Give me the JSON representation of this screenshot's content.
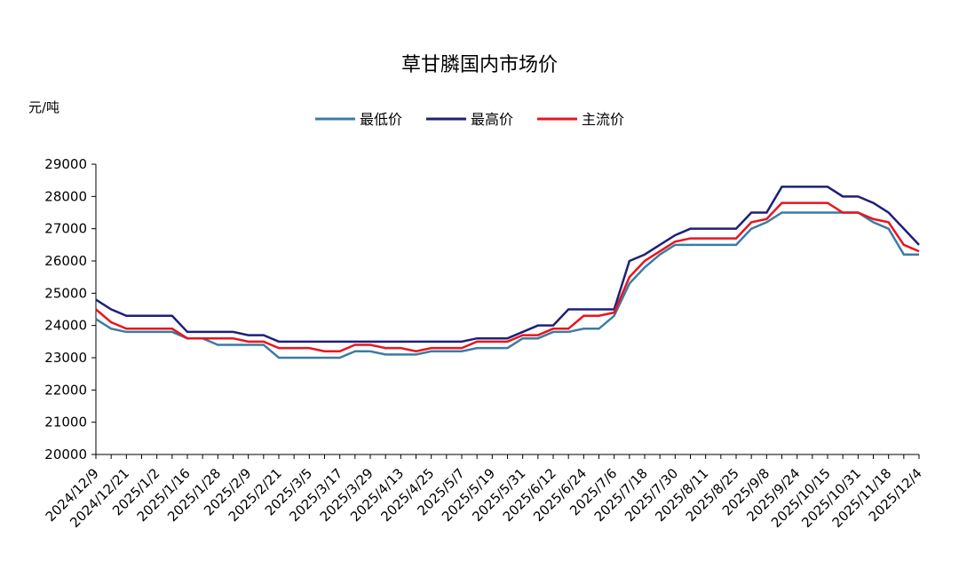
{
  "chart_data": {
    "type": "line",
    "title": "草甘膦国内市场价",
    "y_label": "元/吨",
    "categories": [
      "2024/12/9",
      null,
      "2024/12/21",
      null,
      "2025/1/2",
      null,
      "2025/1/16",
      null,
      "2025/1/28",
      null,
      "2025/2/9",
      null,
      "2025/2/21",
      null,
      "2025/3/5",
      null,
      "2025/3/17",
      null,
      "2025/3/29",
      null,
      "2025/4/13",
      null,
      "2025/4/25",
      null,
      "2025/5/7",
      null,
      "2025/5/19",
      null,
      "2025/5/31",
      null,
      "2025/6/12",
      null,
      "2025/6/24",
      null,
      "2025/7/6",
      null,
      "2025/7/18",
      null,
      "2025/7/30",
      null,
      "2025/8/11",
      null,
      "2025/8/25",
      null,
      "2025/9/8",
      null,
      "2025/9/24",
      null,
      "2025/10/15",
      null,
      "2025/10/31",
      null,
      "2025/11/18",
      null,
      "2025/12/4"
    ],
    "series": [
      {
        "name": "最低价",
        "color": "#3a7ca5",
        "values": [
          24200,
          23900,
          23800,
          23800,
          23800,
          23800,
          23600,
          23600,
          23400,
          23400,
          23400,
          23400,
          23000,
          23000,
          23000,
          23000,
          23000,
          23200,
          23200,
          23100,
          23100,
          23100,
          23200,
          23200,
          23200,
          23300,
          23300,
          23300,
          23600,
          23600,
          23800,
          23800,
          23900,
          23900,
          24300,
          25300,
          25800,
          26200,
          26500,
          26500,
          26500,
          26500,
          26500,
          27000,
          27200,
          27500,
          27500,
          27500,
          27500,
          27500,
          27500,
          27200,
          27000,
          26200,
          26200
        ]
      },
      {
        "name": "最高价",
        "color": "#1f1f7a",
        "values": [
          24800,
          24500,
          24300,
          24300,
          24300,
          24300,
          23800,
          23800,
          23800,
          23800,
          23700,
          23700,
          23500,
          23500,
          23500,
          23500,
          23500,
          23500,
          23500,
          23500,
          23500,
          23500,
          23500,
          23500,
          23500,
          23600,
          23600,
          23600,
          23800,
          24000,
          24000,
          24500,
          24500,
          24500,
          24500,
          26000,
          26200,
          26500,
          26800,
          27000,
          27000,
          27000,
          27000,
          27500,
          27500,
          28300,
          28300,
          28300,
          28300,
          28000,
          28000,
          27800,
          27500,
          27000,
          26500
        ]
      },
      {
        "name": "主流价",
        "color": "#e8141e",
        "values": [
          24500,
          24100,
          23900,
          23900,
          23900,
          23900,
          23600,
          23600,
          23600,
          23600,
          23500,
          23500,
          23300,
          23300,
          23300,
          23200,
          23200,
          23400,
          23400,
          23300,
          23300,
          23200,
          23300,
          23300,
          23300,
          23500,
          23500,
          23500,
          23700,
          23700,
          23900,
          23900,
          24300,
          24300,
          24400,
          25500,
          26000,
          26300,
          26600,
          26700,
          26700,
          26700,
          26700,
          27200,
          27300,
          27800,
          27800,
          27800,
          27800,
          27500,
          27500,
          27300,
          27200,
          26500,
          26300
        ]
      }
    ],
    "ylim": [
      20000,
      29000
    ],
    "yticks": [
      20000,
      21000,
      22000,
      23000,
      24000,
      25000,
      26000,
      27000,
      28000,
      29000
    ]
  }
}
